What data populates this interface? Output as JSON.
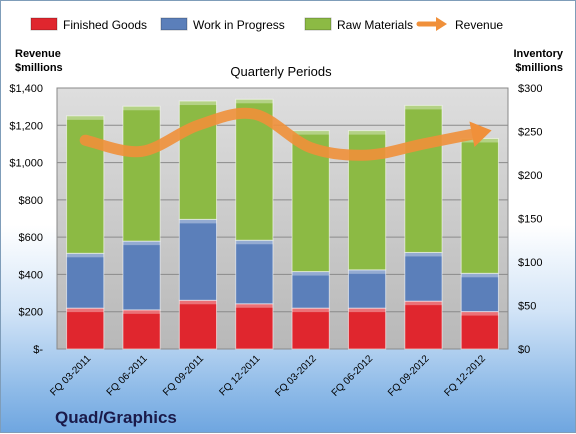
{
  "chart_data": {
    "type": "bar",
    "stacked": true,
    "title": "Quarterly Periods",
    "brand": "Quad/Graphics",
    "categories": [
      "FQ 03-2011",
      "FQ 06-2011",
      "FQ 09-2011",
      "FQ 12-2011",
      "FQ 03-2012",
      "FQ 06-2012",
      "FQ 09-2012",
      "FQ 12-2012"
    ],
    "series": [
      {
        "name": "Finished Goods",
        "color": "#e0262e",
        "values": [
          47,
          45,
          56,
          52,
          47,
          47,
          55,
          43
        ]
      },
      {
        "name": "Work in Progress",
        "color": "#5b7fba",
        "values": [
          63,
          79,
          93,
          73,
          42,
          44,
          56,
          44
        ]
      },
      {
        "name": "Raw Materials",
        "color": "#8cba44",
        "values": [
          158,
          155,
          136,
          162,
          162,
          160,
          169,
          155
        ]
      }
    ],
    "line": {
      "name": "Revenue",
      "color": "#f0903a",
      "values": [
        1120,
        1060,
        1200,
        1260,
        1080,
        1040,
        1100,
        1160
      ]
    },
    "y_left": {
      "label": "Revenue\n$millions",
      "lim": [
        0,
        1400
      ],
      "ticks": [
        "$-",
        "$200",
        "$400",
        "$600",
        "$800",
        "$1,000",
        "$1,200",
        "$1,400"
      ]
    },
    "y_right": {
      "label": "Inventory\n$millions",
      "lim": [
        0,
        300
      ],
      "ticks": [
        "$0",
        "$50",
        "$100",
        "$150",
        "$200",
        "$250",
        "$300"
      ]
    },
    "grid": true,
    "legend_position": "top"
  }
}
